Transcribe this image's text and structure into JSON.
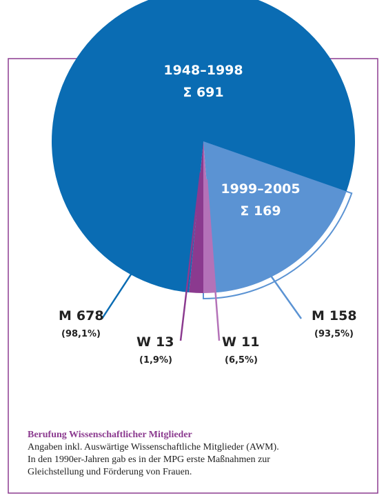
{
  "chart_data": {
    "type": "pie",
    "groups": [
      {
        "label": "1948–1998",
        "total": {
          "value": 691,
          "label": "Σ 691"
        },
        "segments": [
          {
            "name": "M",
            "value": 678,
            "share": 98.1,
            "share_label": "(98,1%)",
            "color": "#0a6cb3"
          },
          {
            "name": "W",
            "value": 13,
            "share": 1.9,
            "share_label": "(1,9%)",
            "color": "#8b3a8f"
          }
        ]
      },
      {
        "label": "1999–2005",
        "total": {
          "value": 169,
          "label": "Σ 169"
        },
        "segments": [
          {
            "name": "M",
            "value": 158,
            "share": 93.5,
            "share_label": "(93,5%)",
            "color": "#5b93d3"
          },
          {
            "name": "W",
            "value": 11,
            "share": 6.5,
            "share_label": "(6,5%)",
            "color": "#b472b8"
          }
        ]
      }
    ],
    "caption": {
      "title": "Berufung Wissenschaftlicher Mitglieder",
      "lines": [
        "Angaben inkl. Auswärtige Wissenschaftliche Mitglieder (AWM).",
        "In den 1990er-Jahren gab es in der MPG erste Maßnahmen zur",
        "Gleichstellung und Förderung von Frauen."
      ]
    }
  }
}
